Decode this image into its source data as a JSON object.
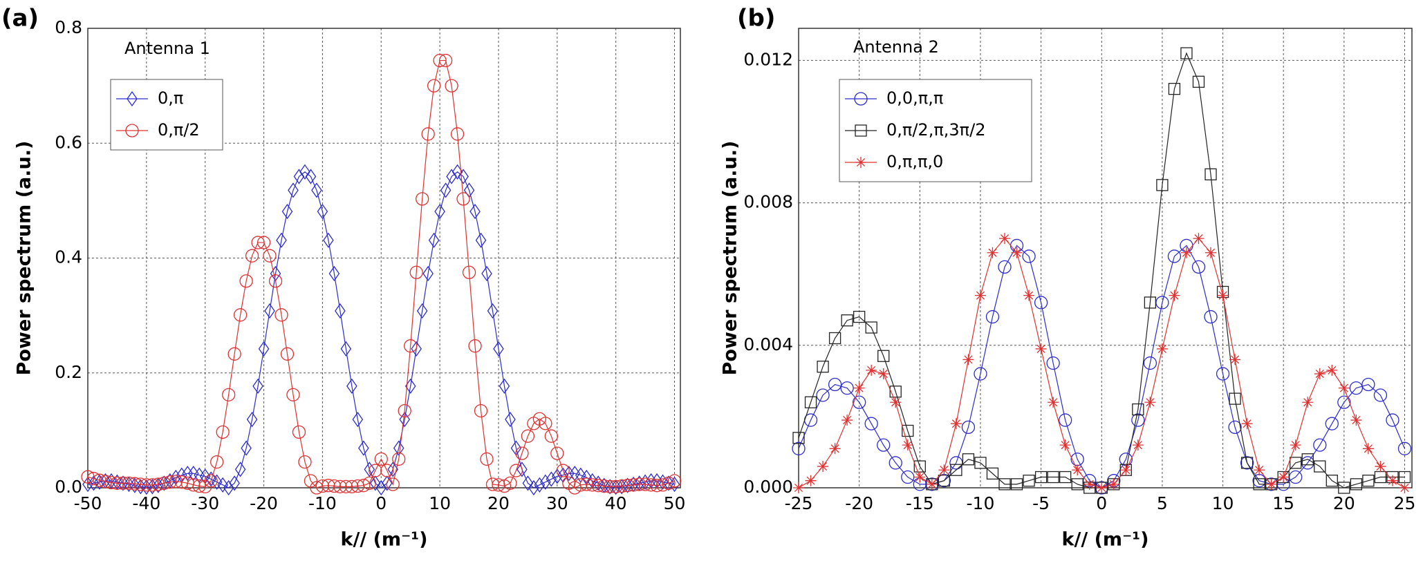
{
  "chart_data": [
    {
      "type": "line",
      "panel_label": "(a)",
      "annotation": "Antenna 1",
      "x_label": "k// (m⁻¹)",
      "y_label": "Power spectrum (a.u.)",
      "xlim": [
        -50,
        51
      ],
      "xticks": [
        -50,
        -40,
        -30,
        -20,
        -10,
        0,
        10,
        20,
        30,
        40,
        50
      ],
      "ylim": [
        0,
        0.8
      ],
      "yticks": [
        {
          "value": 0,
          "label": "0.0"
        },
        0.2,
        0.4,
        0.6,
        0.8
      ],
      "grid": true,
      "legend": "upper left",
      "x": [
        -50,
        -49,
        -48,
        -47,
        -46,
        -45,
        -44,
        -43,
        -42,
        -41,
        -40,
        -39,
        -38,
        -37,
        -36,
        -35,
        -34,
        -33,
        -32,
        -31,
        -30,
        -29,
        -28,
        -27,
        -26,
        -25,
        -24,
        -23,
        -22,
        -21,
        -20,
        -19,
        -18,
        -17,
        -16,
        -15,
        -14,
        -13,
        -12,
        -11,
        -10,
        -9,
        -8,
        -7,
        -6,
        -5,
        -4,
        -3,
        -2,
        -1,
        0,
        1,
        2,
        3,
        4,
        5,
        6,
        7,
        8,
        9,
        10,
        11,
        12,
        13,
        14,
        15,
        16,
        17,
        18,
        19,
        20,
        21,
        22,
        23,
        24,
        25,
        26,
        27,
        28,
        29,
        30,
        31,
        32,
        33,
        34,
        35,
        36,
        37,
        38,
        39,
        40,
        41,
        42,
        43,
        44,
        45,
        46,
        47,
        48,
        49,
        50
      ],
      "series": [
        {
          "name": "0,π",
          "color": "#2b2bd0",
          "marker": "diamond",
          "values": [
            0.006,
            0.008,
            0.01,
            0.012,
            0.012,
            0.01,
            0.008,
            0.006,
            0.004,
            0.002,
            0.001,
            0.002,
            0.004,
            0.008,
            0.012,
            0.018,
            0.022,
            0.025,
            0.025,
            0.022,
            0.02,
            0.015,
            0.01,
            0.005,
            0,
            0.008,
            0.032,
            0.069,
            0.119,
            0.177,
            0.242,
            0.308,
            0.373,
            0.431,
            0.481,
            0.518,
            0.542,
            0.55,
            0.542,
            0.518,
            0.481,
            0.431,
            0.373,
            0.308,
            0.242,
            0.177,
            0.119,
            0.069,
            0.032,
            0.008,
            0,
            0.008,
            0.032,
            0.069,
            0.119,
            0.177,
            0.242,
            0.308,
            0.373,
            0.431,
            0.481,
            0.518,
            0.542,
            0.55,
            0.542,
            0.518,
            0.481,
            0.431,
            0.373,
            0.308,
            0.242,
            0.177,
            0.119,
            0.069,
            0.032,
            0.008,
            0,
            0.005,
            0.01,
            0.015,
            0.02,
            0.022,
            0.025,
            0.025,
            0.022,
            0.018,
            0.012,
            0.008,
            0.004,
            0.002,
            0.001,
            0.002,
            0.004,
            0.006,
            0.008,
            0.01,
            0.012,
            0.012,
            0.01,
            0.008,
            0.006
          ]
        },
        {
          "name": "0,π/2",
          "color": "#e03030",
          "marker": "circle",
          "values": [
            0.019,
            0.016,
            0.013,
            0.011,
            0.009,
            0.008,
            0.008,
            0.008,
            0.007,
            0.006,
            0.005,
            0.005,
            0.006,
            0.008,
            0.01,
            0.011,
            0.01,
            0.008,
            0.005,
            0.003,
            0.002,
            0.012,
            0.045,
            0.097,
            0.162,
            0.233,
            0.301,
            0.36,
            0.404,
            0.427,
            0.427,
            0.404,
            0.36,
            0.301,
            0.233,
            0.162,
            0.097,
            0.045,
            0.012,
            0,
            0.003,
            0.004,
            0.003,
            0.002,
            0.002,
            0.002,
            0.003,
            0.004,
            0.008,
            0.03,
            0.05,
            0.03,
            0.006,
            0.05,
            0.134,
            0.247,
            0.375,
            0.503,
            0.616,
            0.7,
            0.744,
            0.744,
            0.7,
            0.616,
            0.503,
            0.375,
            0.247,
            0.134,
            0.05,
            0.006,
            0.005,
            0.003,
            0.008,
            0.03,
            0.06,
            0.09,
            0.112,
            0.12,
            0.112,
            0.09,
            0.06,
            0.03,
            0.008,
            0,
            0.005,
            0.006,
            0.005,
            0.004,
            0.003,
            0.002,
            0.002,
            0.003,
            0.004,
            0.005,
            0.006,
            0.006,
            0.005,
            0.004,
            0.005,
            0.008,
            0.012
          ]
        }
      ]
    },
    {
      "type": "line",
      "panel_label": "(b)",
      "annotation": "Antenna 2",
      "x_label": "k// (m⁻¹)",
      "y_label": "Power spectrum (a.u.)",
      "xlim": [
        -25,
        25.6
      ],
      "xticks": [
        -25,
        -20,
        -15,
        -10,
        -5,
        0,
        5,
        10,
        15,
        20,
        25
      ],
      "ylim": [
        0,
        0.0129
      ],
      "yticks": [
        {
          "value": 0,
          "label": "0.000"
        },
        0.004,
        0.008,
        0.012
      ],
      "grid": true,
      "legend": "upper left",
      "x": [
        -25,
        -24,
        -23,
        -22,
        -21,
        -20,
        -19,
        -18,
        -17,
        -16,
        -15,
        -14,
        -13,
        -12,
        -11,
        -10,
        -9,
        -8,
        -7,
        -6,
        -5,
        -4,
        -3,
        -2,
        -1,
        0,
        1,
        2,
        3,
        4,
        5,
        6,
        7,
        8,
        9,
        10,
        11,
        12,
        13,
        14,
        15,
        16,
        17,
        18,
        19,
        20,
        21,
        22,
        23,
        24,
        25
      ],
      "series": [
        {
          "name": "0,0,π,π",
          "color": "#2b2bd0",
          "marker": "circle",
          "values": [
            0.0011,
            0.0019,
            0.0026,
            0.0029,
            0.0028,
            0.0024,
            0.0018,
            0.0012,
            0.0007,
            0.0003,
            0.0001,
            0.0001,
            0.0002,
            0.0007,
            0.0017,
            0.0032,
            0.0048,
            0.0062,
            0.0068,
            0.0065,
            0.0052,
            0.0035,
            0.0019,
            0.0008,
            0.0002,
            0,
            0.0002,
            0.0008,
            0.0019,
            0.0035,
            0.0052,
            0.0065,
            0.0068,
            0.0062,
            0.0048,
            0.0032,
            0.0017,
            0.0007,
            0.0002,
            0.0001,
            0.0001,
            0.0003,
            0.0007,
            0.0012,
            0.0018,
            0.0024,
            0.0028,
            0.0029,
            0.0026,
            0.0019,
            0.0011
          ]
        },
        {
          "name": "0,π/2,π,3π/2",
          "color": "#222222",
          "marker": "square",
          "values": [
            0.0014,
            0.0024,
            0.0034,
            0.0042,
            0.0047,
            0.0048,
            0.0045,
            0.0037,
            0.0027,
            0.0016,
            0.0006,
            0.0001,
            0.0002,
            0.0005,
            0.0008,
            0.0007,
            0.0004,
            0.0001,
            0.0001,
            0.0002,
            0.0003,
            0.0003,
            0.0003,
            0.0001,
            0,
            0,
            0.0001,
            0.0005,
            0.0022,
            0.0052,
            0.0085,
            0.0112,
            0.0122,
            0.0114,
            0.0088,
            0.0055,
            0.0025,
            0.0007,
            0.0001,
            0.0001,
            0.0003,
            0.0007,
            0.0008,
            0.0006,
            0.0002,
            0,
            0.0001,
            0.0002,
            0.0003,
            0.0003,
            0.0003
          ]
        },
        {
          "name": "0,π,π,0",
          "color": "#e03030",
          "marker": "star",
          "values": [
            0,
            0.0002,
            0.0006,
            0.0011,
            0.0019,
            0.0028,
            0.0033,
            0.0032,
            0.0024,
            0.0012,
            0.0003,
            0.0001,
            0.0005,
            0.0018,
            0.0036,
            0.0054,
            0.0066,
            0.007,
            0.0066,
            0.0054,
            0.0039,
            0.0024,
            0.0012,
            0.0005,
            0.0001,
            0,
            0.0001,
            0.0005,
            0.0012,
            0.0024,
            0.0039,
            0.0054,
            0.0066,
            0.007,
            0.0066,
            0.0054,
            0.0036,
            0.0018,
            0.0005,
            0.0001,
            0.0003,
            0.0012,
            0.0024,
            0.0032,
            0.0033,
            0.0028,
            0.0019,
            0.0011,
            0.0006,
            0.0002,
            0
          ]
        }
      ]
    }
  ]
}
